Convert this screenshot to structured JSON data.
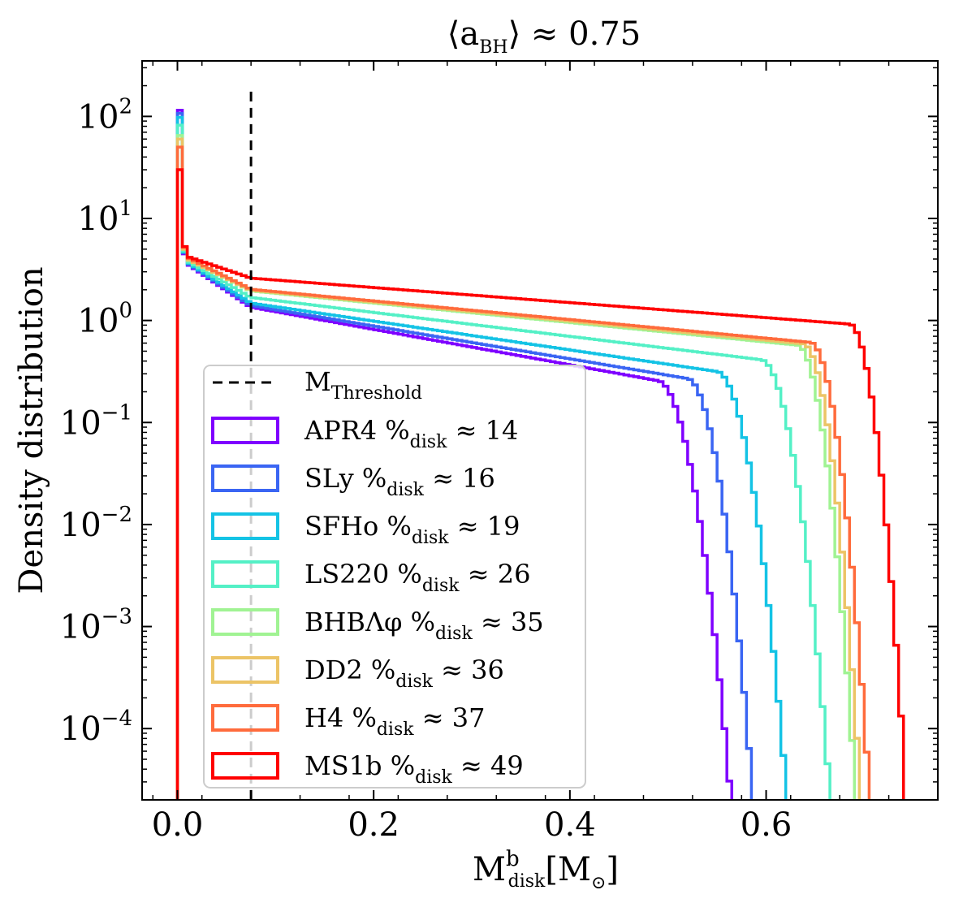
{
  "chart_data": {
    "type": "histogram-step",
    "title": {
      "prefix": "⟨a",
      "sub": "BH",
      "suffix": "⟩ ≈ 0.75"
    },
    "xlabel": {
      "main": "M",
      "sup": "b",
      "sub": "disk",
      "suffix": "[M",
      "suffix_sub": "⊙",
      "close": "]"
    },
    "ylabel": "Density distribution",
    "x_ticks": [
      {
        "value": 0.0,
        "label": "0.0"
      },
      {
        "value": 0.2,
        "label": "0.2"
      },
      {
        "value": 0.4,
        "label": "0.4"
      },
      {
        "value": 0.6,
        "label": "0.6"
      }
    ],
    "y_ticks": [
      {
        "value": 100,
        "base": "10",
        "exp": "2"
      },
      {
        "value": 10,
        "base": "10",
        "exp": "1"
      },
      {
        "value": 1,
        "base": "10",
        "exp": "0"
      },
      {
        "value": 0.1,
        "base": "10",
        "exp": "−1"
      },
      {
        "value": 0.01,
        "base": "10",
        "exp": "−2"
      },
      {
        "value": 0.001,
        "base": "10",
        "exp": "−3"
      },
      {
        "value": 0.0001,
        "base": "10",
        "exp": "−4"
      }
    ],
    "xlim": [
      -0.036,
      0.775
    ],
    "ylim": [
      2e-05,
      350
    ],
    "y_scale": "log",
    "threshold": {
      "x": 0.075,
      "ymax": 175,
      "label_main": "M",
      "label_sub": "Threshold",
      "color": "#000000"
    },
    "legend_loc": "lower-left",
    "series": [
      {
        "name": "APR4",
        "pct": "14",
        "color": "#7f00ff",
        "peak": 115,
        "p0": 4.5,
        "b0": 1.35,
        "c": 4.0,
        "d": 0.49,
        "e": 0.566
      },
      {
        "name": "SLy",
        "pct": "16",
        "color": "#3a65f3",
        "peak": 107,
        "p0": 4.6,
        "b0": 1.4,
        "c": 3.7,
        "d": 0.52,
        "e": 0.588
      },
      {
        "name": "SFHo",
        "pct": "19",
        "color": "#14c3e5",
        "peak": 98,
        "p0": 4.7,
        "b0": 1.48,
        "c": 3.25,
        "d": 0.55,
        "e": 0.622
      },
      {
        "name": "LS220",
        "pct": "26",
        "color": "#54f0c6",
        "peak": 82,
        "p0": 4.8,
        "b0": 1.68,
        "c": 2.7,
        "d": 0.595,
        "e": 0.665
      },
      {
        "name": "BHBΛφ",
        "pct": "35",
        "color": "#a0f393",
        "peak": 65,
        "p0": 5.0,
        "b0": 1.95,
        "c": 2.2,
        "d": 0.632,
        "e": 0.69
      },
      {
        "name": "DD2",
        "pct": "36",
        "color": "#ecc466",
        "peak": 60,
        "p0": 5.0,
        "b0": 1.98,
        "c": 2.15,
        "d": 0.638,
        "e": 0.695
      },
      {
        "name": "H4",
        "pct": "37",
        "color": "#ff6b3c",
        "peak": 50,
        "p0": 5.2,
        "b0": 2.02,
        "c": 2.1,
        "d": 0.645,
        "e": 0.704
      },
      {
        "name": "MS1b",
        "pct": "49",
        "color": "#ff0000",
        "peak": 30,
        "p0": 5.3,
        "b0": 2.6,
        "c": 1.7,
        "d": 0.685,
        "e": 0.74
      }
    ],
    "legend": {
      "pct_symbol": "%",
      "pct_sub": "disk",
      "approx": "≈"
    }
  }
}
